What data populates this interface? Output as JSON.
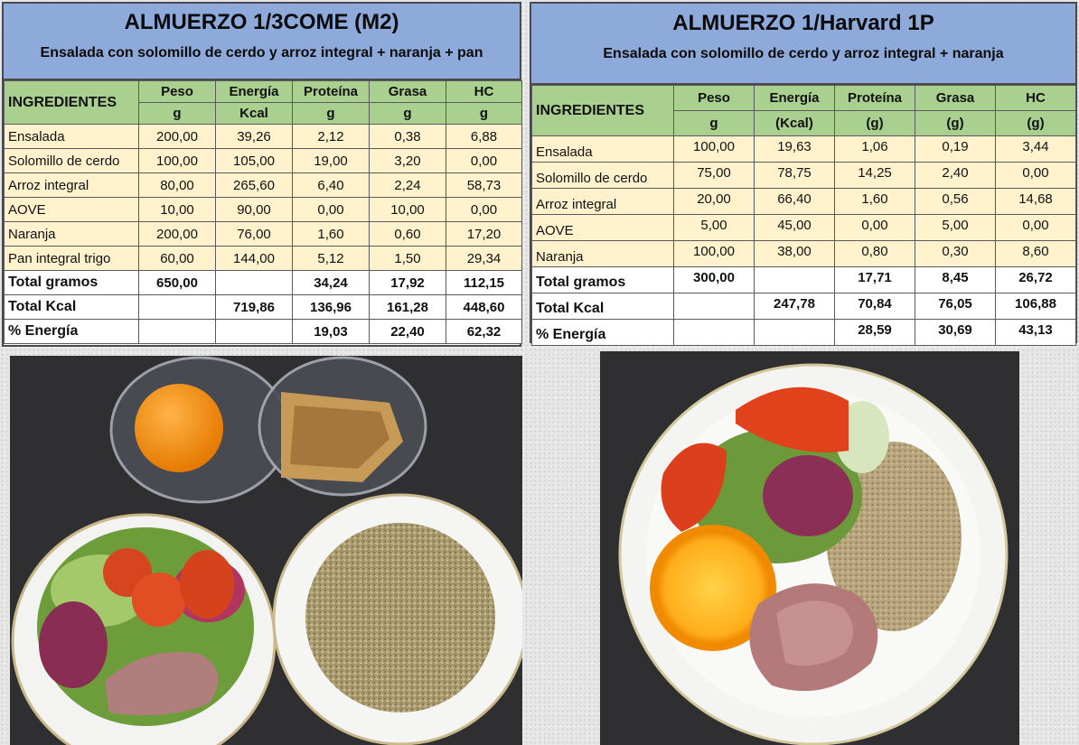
{
  "left_panel": {
    "title": "ALMUERZO 1/3COME (M2)",
    "subtitle": "Ensalada con solomillo de cerdo y arroz integral + naranja + pan",
    "header": {
      "ingredients": "INGREDIENTES",
      "columns": [
        "Peso",
        "Energía",
        "Proteína",
        "Grasa",
        "HC"
      ],
      "units": [
        "g",
        "Kcal",
        "g",
        "g",
        "g"
      ]
    },
    "rows": [
      {
        "name": "Ensalada",
        "values": [
          "200,00",
          "39,26",
          "2,12",
          "0,38",
          "6,88"
        ]
      },
      {
        "name": "Solomillo de cerdo",
        "values": [
          "100,00",
          "105,00",
          "19,00",
          "3,20",
          "0,00"
        ]
      },
      {
        "name": "Arroz integral",
        "values": [
          "80,00",
          "265,60",
          "6,40",
          "2,24",
          "58,73"
        ]
      },
      {
        "name": "AOVE",
        "values": [
          "10,00",
          "90,00",
          "0,00",
          "10,00",
          "0,00"
        ]
      },
      {
        "name": "Naranja",
        "values": [
          "200,00",
          "76,00",
          "1,60",
          "0,60",
          "17,20"
        ]
      },
      {
        "name": "Pan integral trigo",
        "values": [
          "60,00",
          "144,00",
          "5,12",
          "1,50",
          "29,34"
        ]
      }
    ],
    "totals": [
      {
        "name": "Total gramos",
        "values": [
          "650,00",
          "",
          "34,24",
          "17,92",
          "112,15"
        ]
      },
      {
        "name": "Total Kcal",
        "values": [
          "",
          "719,86",
          "136,96",
          "161,28",
          "448,60"
        ]
      },
      {
        "name": "% Energía",
        "values": [
          "",
          "",
          "19,03",
          "22,40",
          "62,32"
        ]
      }
    ]
  },
  "right_panel": {
    "title": "ALMUERZO 1/Harvard 1P",
    "subtitle": "Ensalada con solomillo de cerdo y arroz integral + naranja",
    "header": {
      "ingredients": "INGREDIENTES",
      "columns": [
        "Peso",
        "Energía",
        "Proteína",
        "Grasa",
        "HC"
      ],
      "units": [
        "g",
        "(Kcal)",
        "(g)",
        "(g)",
        "(g)"
      ]
    },
    "rows": [
      {
        "name": "Ensalada",
        "values": [
          "100,00",
          "19,63",
          "1,06",
          "0,19",
          "3,44"
        ]
      },
      {
        "name": "Solomillo de cerdo",
        "values": [
          "75,00",
          "78,75",
          "14,25",
          "2,40",
          "0,00"
        ]
      },
      {
        "name": "Arroz integral",
        "values": [
          "20,00",
          "66,40",
          "1,60",
          "0,56",
          "14,68"
        ]
      },
      {
        "name": "AOVE",
        "values": [
          "5,00",
          "45,00",
          "0,00",
          "5,00",
          "0,00"
        ]
      },
      {
        "name": "Naranja",
        "values": [
          "100,00",
          "38,00",
          "0,80",
          "0,30",
          "8,60"
        ]
      }
    ],
    "totals": [
      {
        "name": "Total gramos",
        "values": [
          "300,00",
          "",
          "17,71",
          "8,45",
          "26,72"
        ]
      },
      {
        "name": "Total Kcal",
        "values": [
          "",
          "247,78",
          "70,84",
          "76,05",
          "106,88"
        ]
      },
      {
        "name": "% Energía",
        "values": [
          "",
          "",
          "28,59",
          "30,69",
          "43,13"
        ]
      }
    ]
  },
  "colors": {
    "title_bg": "#8eaadb",
    "header_bg": "#a9d08e",
    "row_bg": "#fff2cc",
    "total_bg": "#ffffff"
  }
}
